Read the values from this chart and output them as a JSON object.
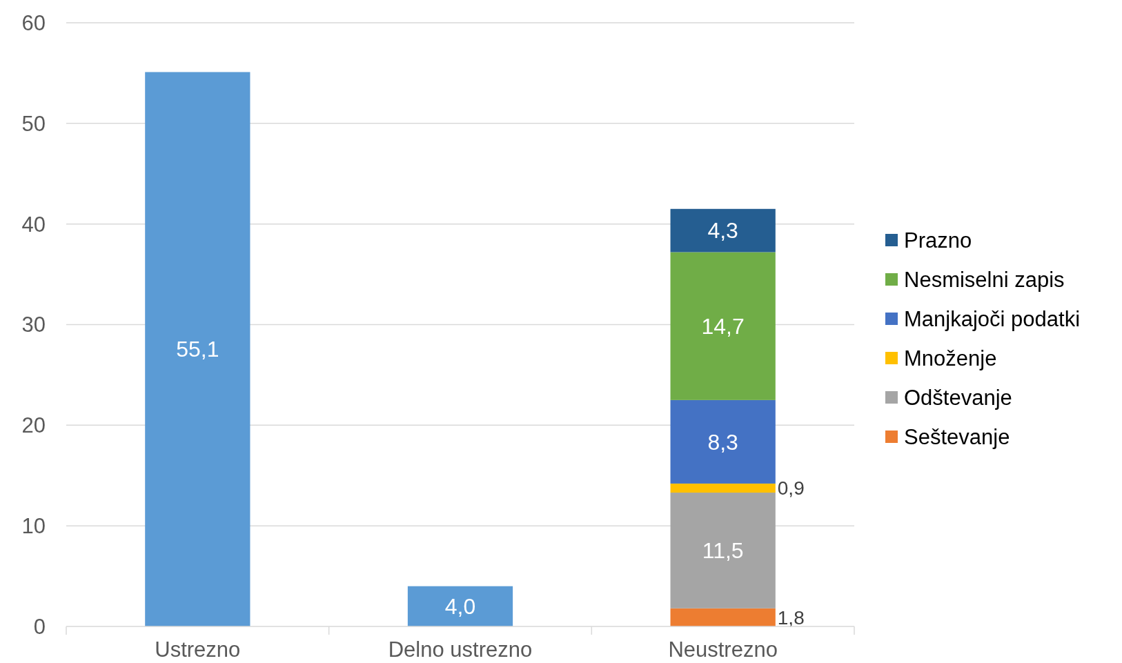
{
  "chart_data": {
    "type": "bar",
    "stacked": true,
    "categories": [
      "Ustrezno",
      "Delno ustrezno",
      "Neustrezno"
    ],
    "series": [
      {
        "color": "#5b9bd5",
        "values": [
          55.1,
          4.0,
          null
        ],
        "value_labels": [
          "55,1",
          "4,0",
          null
        ]
      },
      {
        "name": "Seštevanje",
        "color": "#ed7d31",
        "values": [
          null,
          null,
          1.8
        ],
        "value_labels": [
          null,
          null,
          "1,8"
        ]
      },
      {
        "name": "Odštevanje",
        "color": "#a5a5a5",
        "values": [
          null,
          null,
          11.5
        ],
        "value_labels": [
          null,
          null,
          "11,5"
        ]
      },
      {
        "name": "Množenje",
        "color": "#ffc000",
        "values": [
          null,
          null,
          0.9
        ],
        "value_labels": [
          null,
          null,
          "0,9"
        ]
      },
      {
        "name": "Manjkajoči podatki",
        "color": "#4472c4",
        "values": [
          null,
          null,
          8.3
        ],
        "value_labels": [
          null,
          null,
          "8,3"
        ]
      },
      {
        "name": "Nesmiselni zapis",
        "color": "#70ad47",
        "values": [
          null,
          null,
          14.7
        ],
        "value_labels": [
          null,
          null,
          "14,7"
        ]
      },
      {
        "name": "Prazno",
        "color": "#255e91",
        "values": [
          null,
          null,
          4.3
        ],
        "value_labels": [
          null,
          null,
          "4,3"
        ]
      }
    ],
    "ylim": [
      0,
      60
    ],
    "yticks": [
      0,
      10,
      20,
      30,
      40,
      50,
      60
    ],
    "grid": "y",
    "legend": "right"
  }
}
